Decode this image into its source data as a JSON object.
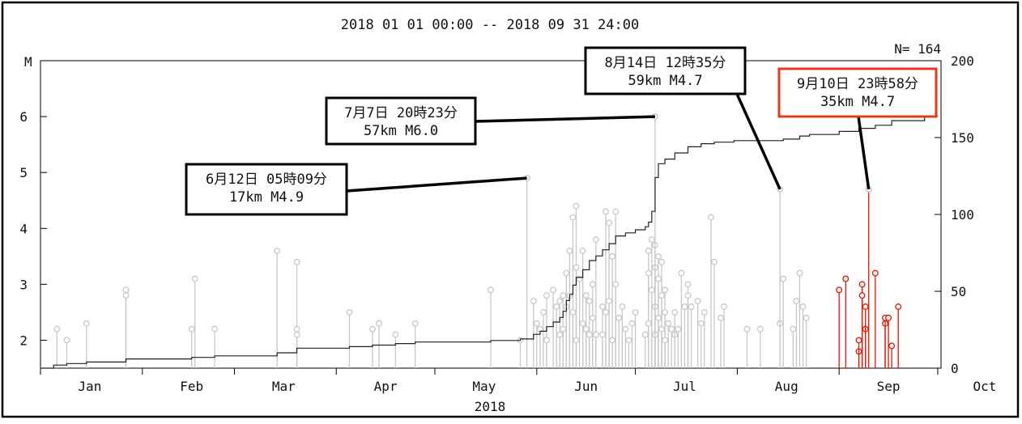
{
  "chart_data": {
    "type": "scatter",
    "title": "2018 01 01 00:00 -- 2018 09 31 24:00",
    "count_label": "N= 164",
    "xlabel": "2018",
    "ylabel_left": "M",
    "x_unit": "day-of-year",
    "xlim": [
      1,
      275
    ],
    "ylim_left": [
      1.5,
      7.0
    ],
    "ylim_right": [
      0,
      200
    ],
    "x_ticks": [
      "Jan",
      "Feb",
      "Mar",
      "Apr",
      "May",
      "Jun",
      "Jul",
      "Aug",
      "Sep",
      "Oct"
    ],
    "y_ticks_left": [
      "2",
      "3",
      "4",
      "5",
      "6"
    ],
    "y_ticks_right": [
      "0",
      "50",
      "100",
      "150",
      "200"
    ],
    "colors": {
      "before": "#c8c8c8",
      "after": "#ee1100",
      "cumulative": "#222222",
      "highlight_border": "#e8381c"
    },
    "series": [
      {
        "style": "gray-stems",
        "points": [
          [
            6,
            2.2
          ],
          [
            9,
            2.0
          ],
          [
            15,
            2.3
          ],
          [
            27,
            2.9
          ],
          [
            27,
            2.8
          ],
          [
            47,
            2.2
          ],
          [
            48,
            3.1
          ],
          [
            54,
            2.2
          ],
          [
            73,
            3.6
          ],
          [
            79,
            3.4
          ],
          [
            79,
            2.2
          ],
          [
            79,
            2.1
          ],
          [
            95,
            2.5
          ],
          [
            102,
            2.2
          ],
          [
            104,
            2.3
          ],
          [
            109,
            2.1
          ],
          [
            115,
            2.3
          ],
          [
            138,
            2.9
          ],
          [
            147,
            2.0
          ],
          [
            151,
            2.7
          ],
          [
            152,
            2.3
          ],
          [
            153,
            2.2
          ],
          [
            154,
            2.5
          ],
          [
            155,
            2.8
          ],
          [
            155,
            2.0
          ],
          [
            157,
            2.9
          ],
          [
            158,
            2.6
          ],
          [
            159,
            2.7
          ],
          [
            159,
            2.1
          ],
          [
            160,
            2.8
          ],
          [
            160,
            2.2
          ],
          [
            161,
            3.2
          ],
          [
            161,
            2.6
          ],
          [
            162,
            3.6
          ],
          [
            162,
            2.8
          ],
          [
            163,
            4.2
          ],
          [
            163,
            2.5
          ],
          [
            164,
            4.4
          ],
          [
            164,
            3.3
          ],
          [
            164,
            2.0
          ],
          [
            165,
            3.1
          ],
          [
            166,
            3.6
          ],
          [
            166,
            2.3
          ],
          [
            167,
            2.8
          ],
          [
            167,
            2.2
          ],
          [
            168,
            2.7
          ],
          [
            168,
            2.1
          ],
          [
            169,
            3.0
          ],
          [
            169,
            2.4
          ],
          [
            170,
            3.8
          ],
          [
            170,
            2.1
          ],
          [
            172,
            2.6
          ],
          [
            172,
            2.1
          ],
          [
            173,
            4.3
          ],
          [
            173,
            2.5
          ],
          [
            174,
            4.1
          ],
          [
            174,
            2.7
          ],
          [
            175,
            3.5
          ],
          [
            175,
            2.0
          ],
          [
            176,
            4.3
          ],
          [
            176,
            3.0
          ],
          [
            177,
            2.4
          ],
          [
            178,
            2.6
          ],
          [
            179,
            2.2
          ],
          [
            180,
            2.0
          ],
          [
            181,
            2.3
          ],
          [
            182,
            2.5
          ],
          [
            185,
            2.1
          ],
          [
            186,
            3.6
          ],
          [
            186,
            3.2
          ],
          [
            186,
            2.3
          ],
          [
            187,
            3.8
          ],
          [
            187,
            2.9
          ],
          [
            188,
            3.7
          ],
          [
            188,
            3.3
          ],
          [
            188,
            2.6
          ],
          [
            188,
            2.1
          ],
          [
            189,
            3.5
          ],
          [
            189,
            3.1
          ],
          [
            189,
            2.4
          ],
          [
            190,
            3.4
          ],
          [
            190,
            2.8
          ],
          [
            190,
            2.2
          ],
          [
            191,
            2.9
          ],
          [
            191,
            2.5
          ],
          [
            191,
            2.0
          ],
          [
            192,
            2.3
          ],
          [
            193,
            2.2
          ],
          [
            194,
            2.1
          ],
          [
            194,
            2.5
          ],
          [
            195,
            2.2
          ],
          [
            196,
            3.2
          ],
          [
            197,
            2.6
          ],
          [
            198,
            3.0
          ],
          [
            198,
            2.8
          ],
          [
            199,
            2.6
          ],
          [
            201,
            2.7
          ],
          [
            202,
            2.3
          ],
          [
            203,
            2.5
          ],
          [
            205,
            4.2
          ],
          [
            206,
            3.4
          ],
          [
            208,
            2.4
          ],
          [
            209,
            2.6
          ],
          [
            216,
            2.2
          ],
          [
            220,
            2.2
          ],
          [
            226,
            2.3
          ],
          [
            227,
            3.1
          ],
          [
            230,
            2.2
          ],
          [
            231,
            2.7
          ],
          [
            232,
            3.2
          ],
          [
            233,
            2.6
          ],
          [
            234,
            2.4
          ]
        ]
      },
      {
        "style": "red-stems",
        "points": [
          [
            244,
            2.9
          ],
          [
            246,
            3.1
          ],
          [
            250,
            1.8
          ],
          [
            250,
            2.0
          ],
          [
            251,
            3.0
          ],
          [
            251,
            2.8
          ],
          [
            252,
            2.2
          ],
          [
            252,
            2.6
          ],
          [
            255,
            3.2
          ],
          [
            258,
            2.3
          ],
          [
            258,
            2.4
          ],
          [
            259,
            2.4
          ],
          [
            260,
            1.9
          ],
          [
            262,
            2.6
          ]
        ]
      }
    ],
    "highlights": [
      {
        "x": 149,
        "y": 4.9,
        "line1": "6月12日 05時09分",
        "line2": "17km  M4.9",
        "color": "#c8c8c8"
      },
      {
        "x": 188,
        "y": 6.0,
        "line1": "7月7日 20時23分",
        "line2": "57km  M6.0",
        "color": "#c8c8c8"
      },
      {
        "x": 226,
        "y": 4.7,
        "line1": "8月14日 12時35分",
        "line2": "59km  M4.7",
        "color": "#c8c8c8"
      },
      {
        "x": 253,
        "y": 4.7,
        "line1": "9月10日 23時58分",
        "line2": "35km  M4.7",
        "color": "#ee1100"
      }
    ],
    "cumulative": [
      [
        1,
        0
      ],
      [
        5,
        2
      ],
      [
        9,
        3
      ],
      [
        15,
        4
      ],
      [
        27,
        6
      ],
      [
        47,
        7
      ],
      [
        54,
        8
      ],
      [
        73,
        10
      ],
      [
        79,
        13
      ],
      [
        95,
        14
      ],
      [
        102,
        15
      ],
      [
        109,
        16
      ],
      [
        115,
        17
      ],
      [
        138,
        18
      ],
      [
        147,
        19
      ],
      [
        151,
        22
      ],
      [
        153,
        24
      ],
      [
        155,
        27
      ],
      [
        157,
        30
      ],
      [
        159,
        33
      ],
      [
        160,
        37
      ],
      [
        161,
        44
      ],
      [
        162,
        48
      ],
      [
        163,
        54
      ],
      [
        164,
        59
      ],
      [
        166,
        64
      ],
      [
        168,
        70
      ],
      [
        170,
        73
      ],
      [
        172,
        77
      ],
      [
        174,
        81
      ],
      [
        176,
        86
      ],
      [
        179,
        88
      ],
      [
        182,
        90
      ],
      [
        185,
        92
      ],
      [
        186,
        95
      ],
      [
        187,
        102
      ],
      [
        188,
        124
      ],
      [
        189,
        133
      ],
      [
        191,
        136
      ],
      [
        194,
        140
      ],
      [
        198,
        144
      ],
      [
        202,
        146
      ],
      [
        206,
        147
      ],
      [
        212,
        148
      ],
      [
        220,
        148
      ],
      [
        227,
        149
      ],
      [
        232,
        151
      ],
      [
        235,
        152
      ],
      [
        244,
        154
      ],
      [
        250,
        156
      ],
      [
        255,
        158
      ],
      [
        260,
        161
      ],
      [
        270,
        164
      ],
      [
        274,
        164
      ]
    ]
  }
}
